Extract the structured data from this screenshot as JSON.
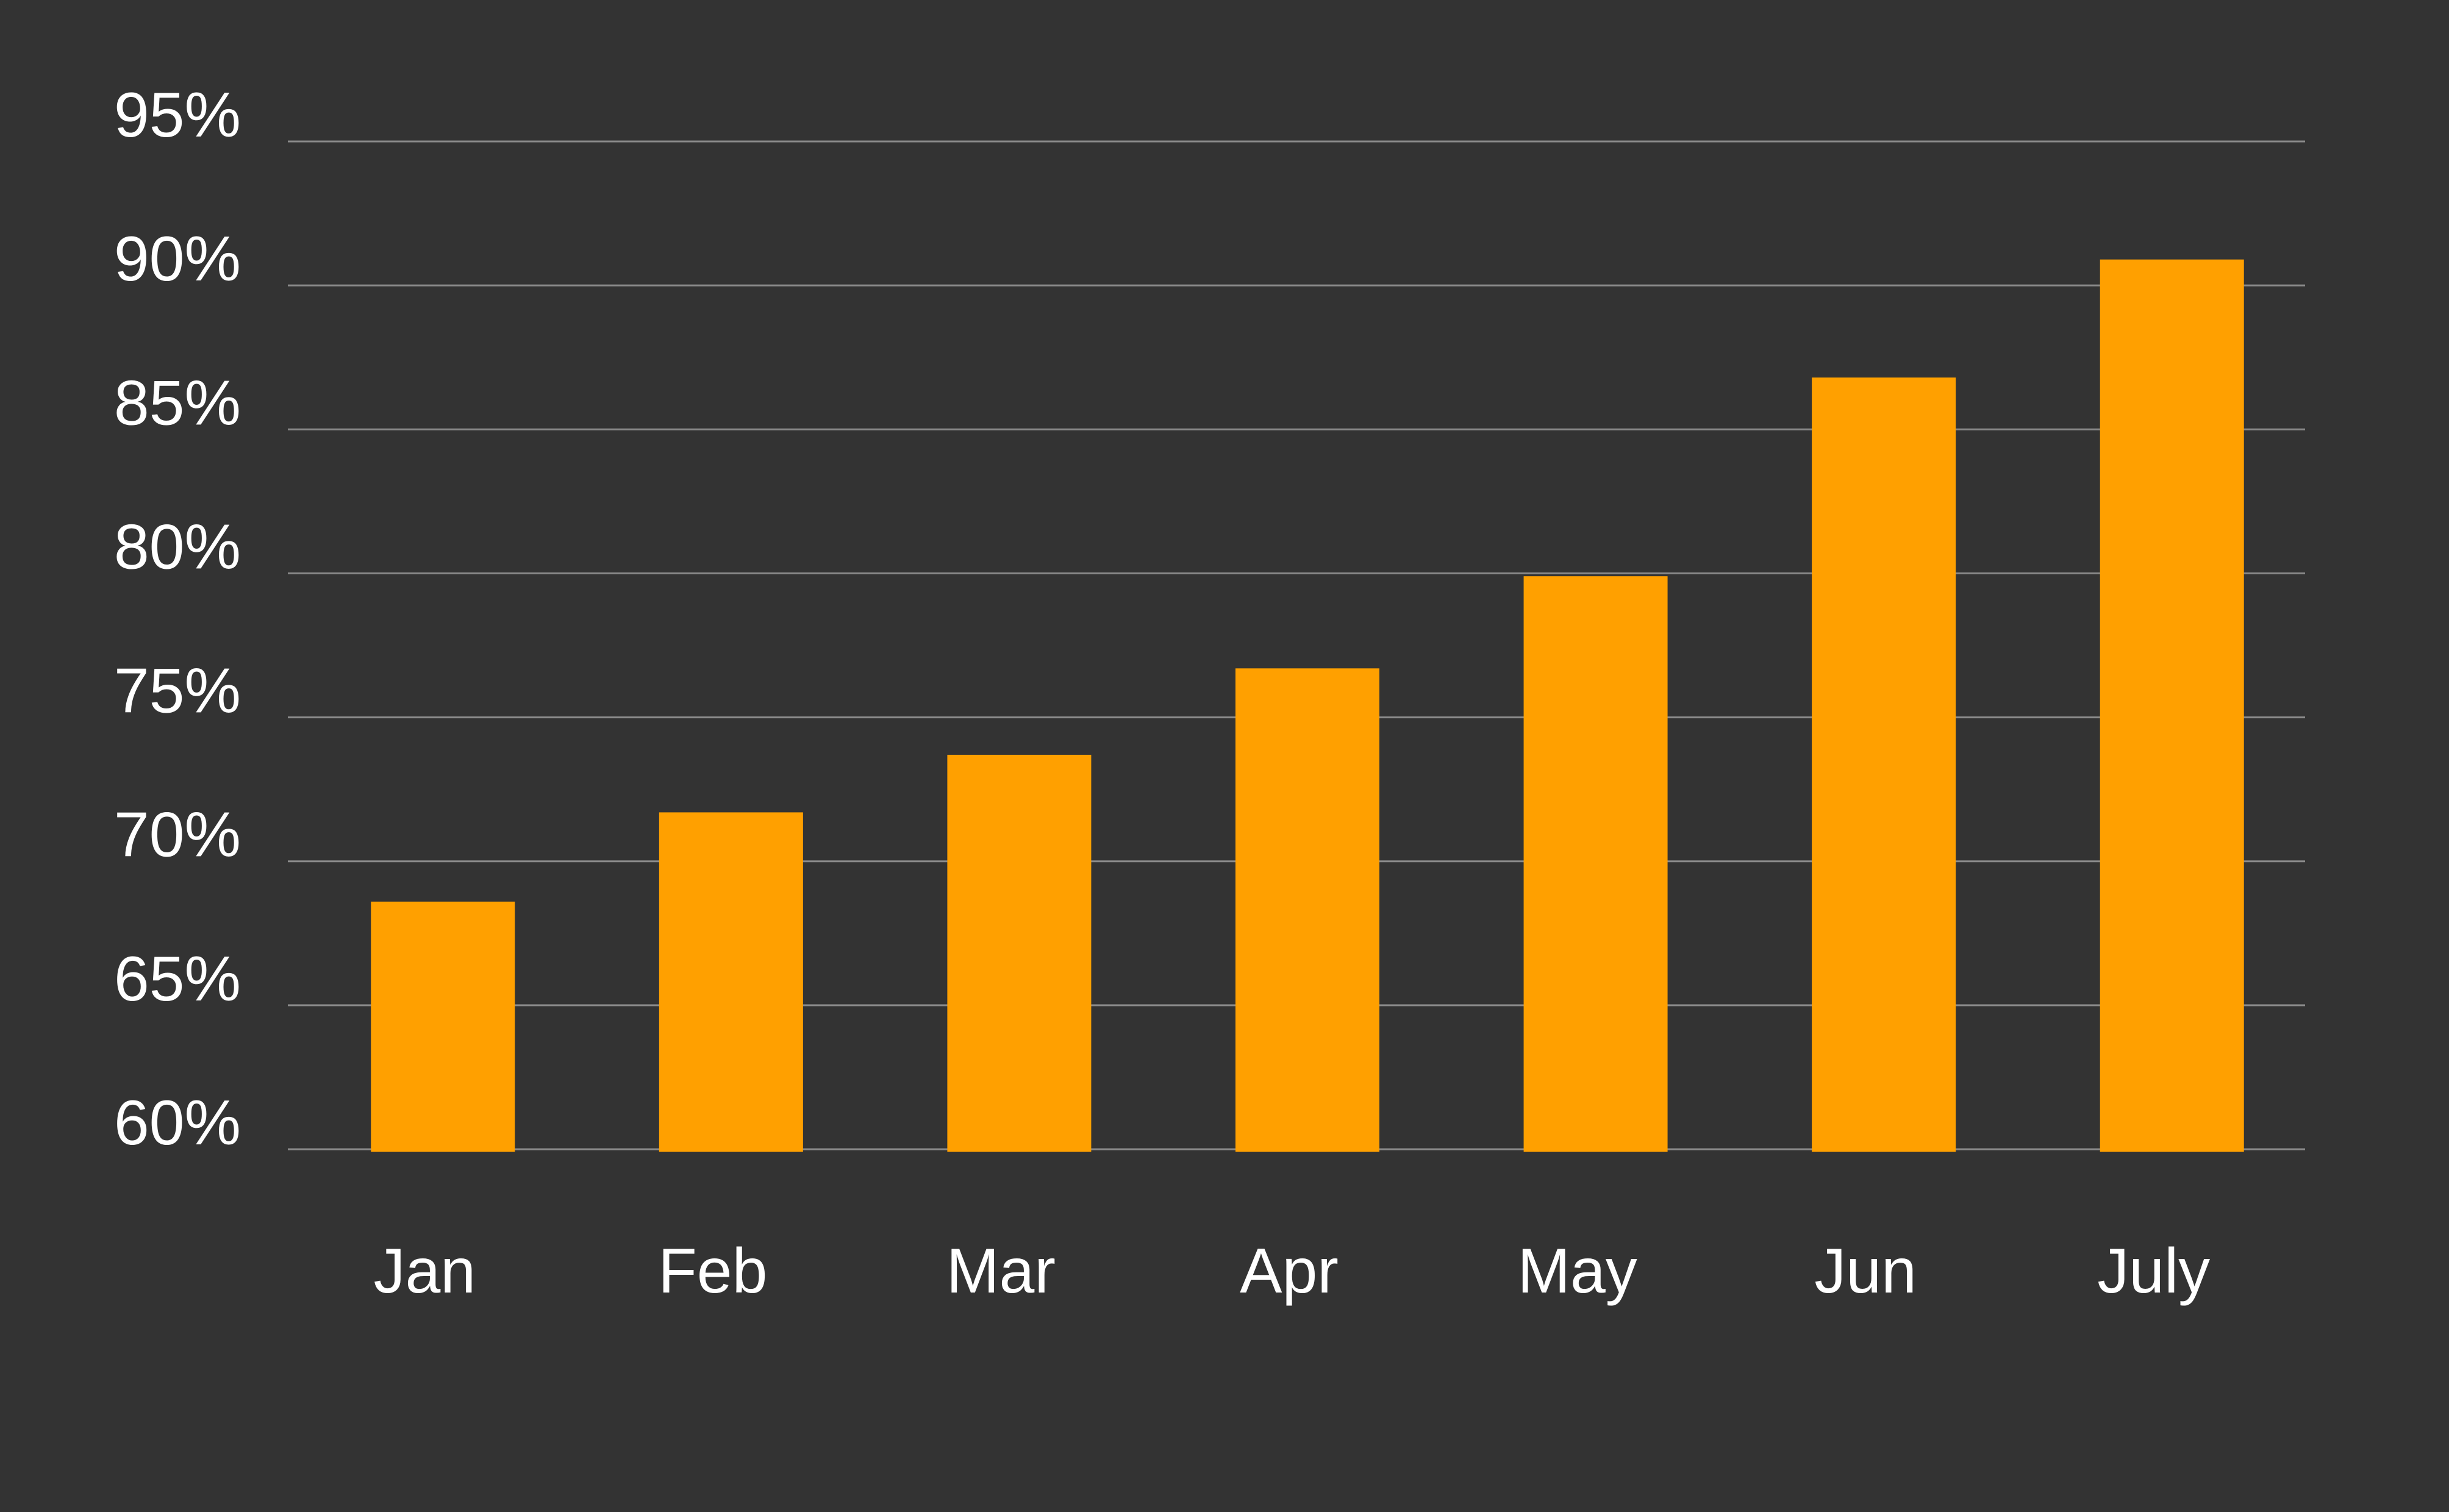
{
  "colors": {
    "background": "#333333",
    "bar": "#FFA000",
    "grid": "#8a8a8a",
    "text": "#ffffff"
  },
  "chart_data": {
    "type": "bar",
    "title": "",
    "xlabel": "",
    "ylabel": "",
    "categories": [
      "Jan",
      "Feb",
      "Mar",
      "Apr",
      "May",
      "Jun",
      "July"
    ],
    "values": [
      68.6,
      71.7,
      73.7,
      76.7,
      79.9,
      86.8,
      90.9
    ],
    "ylim": [
      60,
      95
    ],
    "yticks": [
      60,
      65,
      70,
      75,
      80,
      85,
      90,
      95
    ],
    "ytick_labels": [
      "60%",
      "65%",
      "70%",
      "75%",
      "80%",
      "85%",
      "90%",
      "95%"
    ],
    "grid": true,
    "legend": "none"
  }
}
